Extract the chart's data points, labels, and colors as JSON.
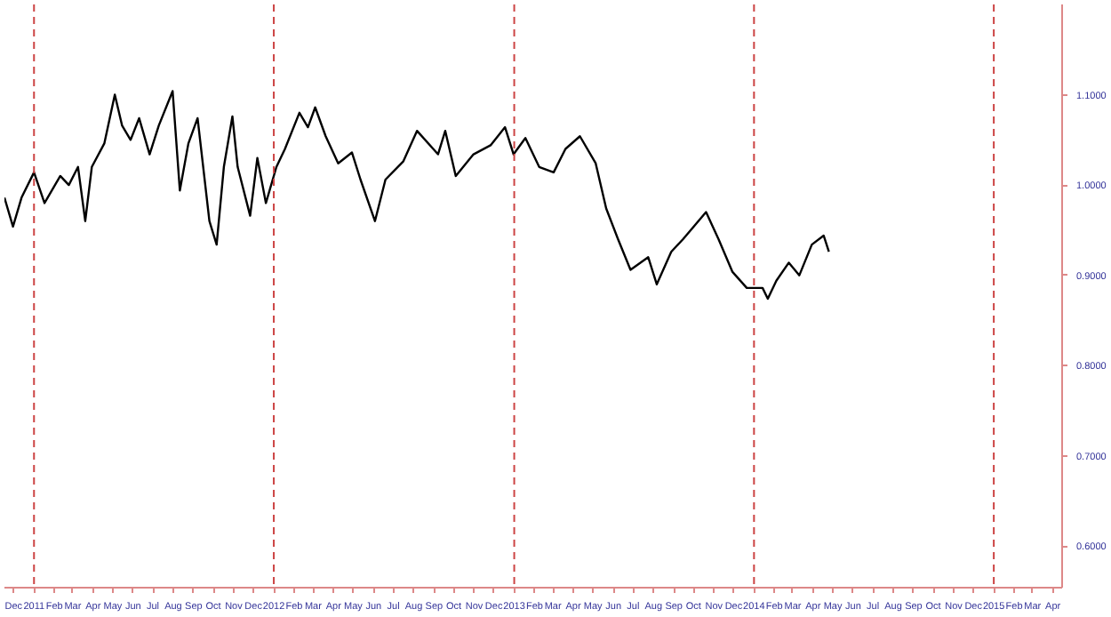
{
  "chart_data": {
    "type": "line",
    "xlim": [
      "2010-11-17",
      "2015-04-15"
    ],
    "ylim": [
      0.554,
      1.2
    ],
    "xticks": [
      {
        "value": "2010-12-01",
        "label": "Dec"
      },
      {
        "value": "2011-01-01",
        "label": "2011"
      },
      {
        "value": "2011-02-01",
        "label": "Feb"
      },
      {
        "value": "2011-03-01",
        "label": "Mar"
      },
      {
        "value": "2011-04-01",
        "label": "Apr"
      },
      {
        "value": "2011-05-01",
        "label": "May"
      },
      {
        "value": "2011-06-01",
        "label": "Jun"
      },
      {
        "value": "2011-07-01",
        "label": "Jul"
      },
      {
        "value": "2011-08-01",
        "label": "Aug"
      },
      {
        "value": "2011-09-01",
        "label": "Sep"
      },
      {
        "value": "2011-10-01",
        "label": "Oct"
      },
      {
        "value": "2011-11-01",
        "label": "Nov"
      },
      {
        "value": "2011-12-01",
        "label": "Dec"
      },
      {
        "value": "2012-01-01",
        "label": "2012"
      },
      {
        "value": "2012-02-01",
        "label": "Feb"
      },
      {
        "value": "2012-03-01",
        "label": "Mar"
      },
      {
        "value": "2012-04-01",
        "label": "Apr"
      },
      {
        "value": "2012-05-01",
        "label": "May"
      },
      {
        "value": "2012-06-01",
        "label": "Jun"
      },
      {
        "value": "2012-07-01",
        "label": "Jul"
      },
      {
        "value": "2012-08-01",
        "label": "Aug"
      },
      {
        "value": "2012-09-01",
        "label": "Sep"
      },
      {
        "value": "2012-10-01",
        "label": "Oct"
      },
      {
        "value": "2012-11-01",
        "label": "Nov"
      },
      {
        "value": "2012-12-01",
        "label": "Dec"
      },
      {
        "value": "2013-01-01",
        "label": "2013"
      },
      {
        "value": "2013-02-01",
        "label": "Feb"
      },
      {
        "value": "2013-03-01",
        "label": "Mar"
      },
      {
        "value": "2013-04-01",
        "label": "Apr"
      },
      {
        "value": "2013-05-01",
        "label": "May"
      },
      {
        "value": "2013-06-01",
        "label": "Jun"
      },
      {
        "value": "2013-07-01",
        "label": "Jul"
      },
      {
        "value": "2013-08-01",
        "label": "Aug"
      },
      {
        "value": "2013-09-01",
        "label": "Sep"
      },
      {
        "value": "2013-10-01",
        "label": "Oct"
      },
      {
        "value": "2013-11-01",
        "label": "Nov"
      },
      {
        "value": "2013-12-01",
        "label": "Dec"
      },
      {
        "value": "2014-01-01",
        "label": "2014"
      },
      {
        "value": "2014-02-01",
        "label": "Feb"
      },
      {
        "value": "2014-03-01",
        "label": "Mar"
      },
      {
        "value": "2014-04-01",
        "label": "Apr"
      },
      {
        "value": "2014-05-01",
        "label": "May"
      },
      {
        "value": "2014-06-01",
        "label": "Jun"
      },
      {
        "value": "2014-07-01",
        "label": "Jul"
      },
      {
        "value": "2014-08-01",
        "label": "Aug"
      },
      {
        "value": "2014-09-01",
        "label": "Sep"
      },
      {
        "value": "2014-10-01",
        "label": "Oct"
      },
      {
        "value": "2014-11-01",
        "label": "Nov"
      },
      {
        "value": "2014-12-01",
        "label": "Dec"
      },
      {
        "value": "2015-01-01",
        "label": "2015"
      },
      {
        "value": "2015-02-01",
        "label": "Feb"
      },
      {
        "value": "2015-03-01",
        "label": "Mar"
      },
      {
        "value": "2015-04-01",
        "label": "Apr"
      }
    ],
    "yticks": [
      {
        "value": 0.6,
        "label": "0.6000"
      },
      {
        "value": 0.7,
        "label": "0.7000"
      },
      {
        "value": 0.8,
        "label": "0.8000"
      },
      {
        "value": 0.9,
        "label": "0.9000"
      },
      {
        "value": 1.0,
        "label": "1.0000"
      },
      {
        "value": 1.1,
        "label": "1.1000"
      }
    ],
    "grid": false,
    "ref_lines": [
      {
        "axis": "x",
        "value": "2011-01-01",
        "color": "#cc4444",
        "line_style": "dashed"
      },
      {
        "axis": "x",
        "value": "2012-01-01",
        "color": "#cc4444",
        "line_style": "dashed"
      },
      {
        "axis": "x",
        "value": "2013-01-01",
        "color": "#cc4444",
        "line_style": "dashed"
      },
      {
        "axis": "x",
        "value": "2014-01-01",
        "color": "#cc4444",
        "line_style": "dashed"
      },
      {
        "axis": "x",
        "value": "2015-01-01",
        "color": "#cc4444",
        "line_style": "dashed"
      }
    ],
    "x": [
      "2010-11-17",
      "2010-11-30",
      "2010-12-13",
      "2011-01-01",
      "2011-01-17",
      "2011-02-10",
      "2011-02-23",
      "2011-03-09",
      "2011-03-20",
      "2011-03-30",
      "2011-04-18",
      "2011-05-04",
      "2011-05-15",
      "2011-05-28",
      "2011-06-10",
      "2011-06-26",
      "2011-07-10",
      "2011-07-31",
      "2011-08-11",
      "2011-08-24",
      "2011-09-07",
      "2011-09-25",
      "2011-10-06",
      "2011-10-17",
      "2011-10-30",
      "2011-11-07",
      "2011-11-26",
      "2011-12-07",
      "2011-12-20",
      "2012-01-05",
      "2012-01-18",
      "2012-02-09",
      "2012-02-22",
      "2012-03-04",
      "2012-03-20",
      "2012-04-08",
      "2012-04-29",
      "2012-05-12",
      "2012-06-03",
      "2012-06-19",
      "2012-07-16",
      "2012-08-06",
      "2012-09-07",
      "2012-09-18",
      "2012-10-04",
      "2012-10-31",
      "2012-11-26",
      "2012-12-18",
      "2012-12-31",
      "2013-01-18",
      "2013-02-08",
      "2013-03-02",
      "2013-03-20",
      "2013-04-11",
      "2013-05-05",
      "2013-05-21",
      "2013-06-08",
      "2013-06-27",
      "2013-07-24",
      "2013-08-06",
      "2013-08-28",
      "2013-09-15",
      "2013-10-20",
      "2013-11-08",
      "2013-11-29",
      "2013-12-21",
      "2014-01-14",
      "2014-01-22",
      "2014-02-04",
      "2014-02-23",
      "2014-03-11",
      "2014-03-30",
      "2014-04-17",
      "2014-04-25"
    ],
    "series": [
      {
        "color": "#000000",
        "values": [
          0.986,
          0.954,
          0.986,
          1.014,
          0.98,
          1.01,
          1.0,
          1.02,
          0.96,
          1.02,
          1.046,
          1.1,
          1.066,
          1.05,
          1.074,
          1.034,
          1.066,
          1.104,
          0.994,
          1.046,
          1.074,
          0.96,
          0.934,
          1.02,
          1.076,
          1.02,
          0.966,
          1.03,
          0.98,
          1.02,
          1.04,
          1.08,
          1.064,
          1.086,
          1.054,
          1.024,
          1.036,
          1.006,
          0.96,
          1.006,
          1.026,
          1.06,
          1.034,
          1.06,
          1.01,
          1.034,
          1.044,
          1.064,
          1.034,
          1.052,
          1.02,
          1.014,
          1.04,
          1.054,
          1.024,
          0.974,
          0.94,
          0.906,
          0.92,
          0.89,
          0.926,
          0.94,
          0.97,
          0.94,
          0.904,
          0.886,
          0.886,
          0.874,
          0.894,
          0.914,
          0.9,
          0.934,
          0.944,
          0.926
        ]
      }
    ]
  }
}
